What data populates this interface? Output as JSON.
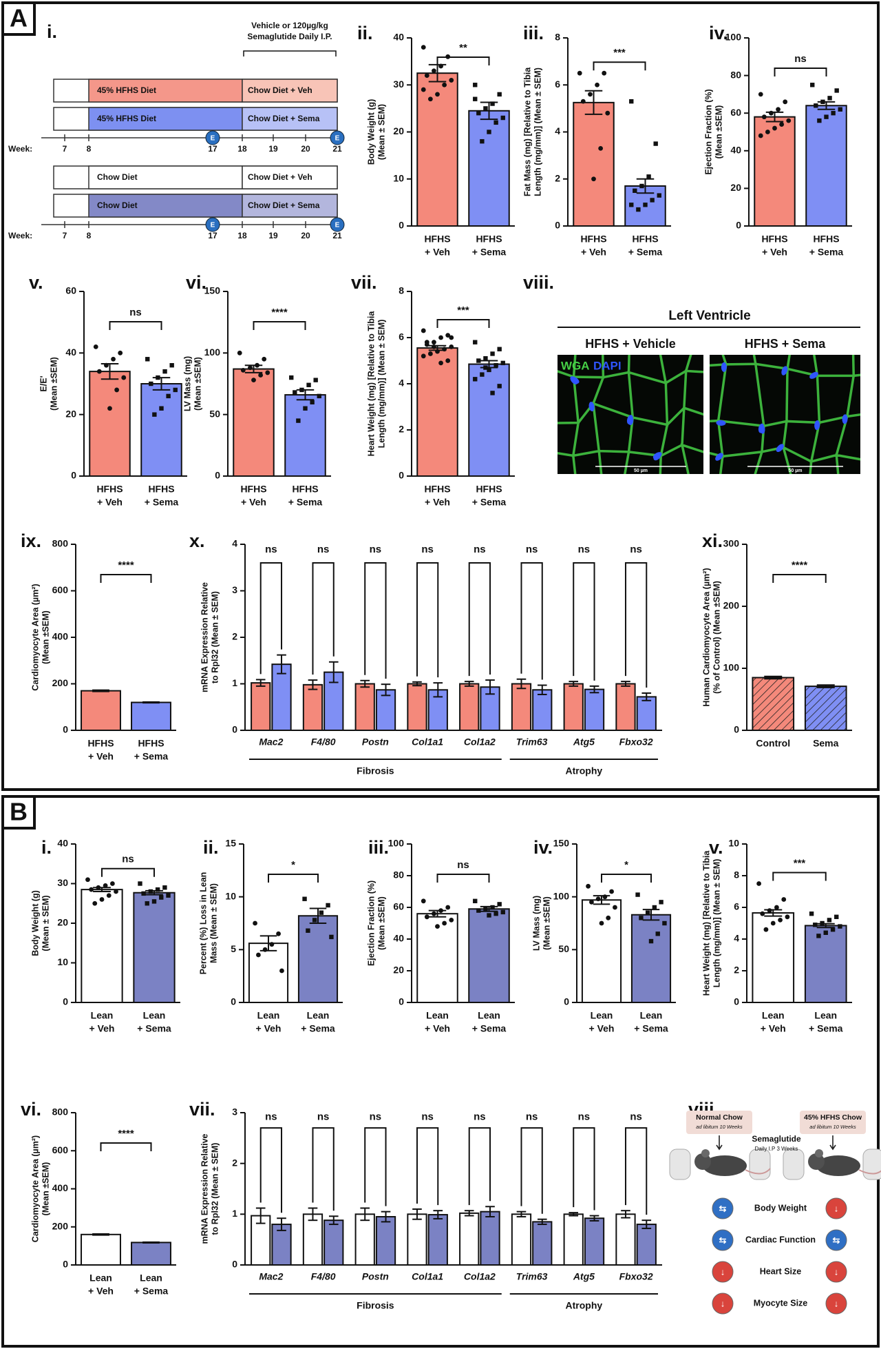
{
  "sections": [
    "A",
    "B"
  ],
  "timeline": {
    "panel": "i.",
    "note": [
      "Vehicle or 120µg/kg",
      "Semaglutide Daily I.P."
    ],
    "week_label": "Week:",
    "weeks": [
      7,
      8,
      17,
      18,
      19,
      20,
      21
    ],
    "endpoint": "E",
    "endpoint_weeks": [
      17,
      21
    ],
    "cohorts": [
      {
        "rows": [
          {
            "diet": "45% HFHS Diet",
            "treatment": "Chow Diet + Veh",
            "diet_color": "#f4978a",
            "treatment_color": "#f8c4b7"
          },
          {
            "diet": "45% HFHS Diet",
            "treatment": "Chow Diet + Sema",
            "diet_color": "#7d90f1",
            "treatment_color": "#b7c1f6"
          }
        ]
      },
      {
        "rows": [
          {
            "diet": "Chow Diet",
            "treatment": "Chow Diet + Veh",
            "diet_color": "#ffffff",
            "treatment_color": "#ffffff"
          },
          {
            "diet": "Chow Diet",
            "treatment": "Chow Diet + Sema",
            "diet_color": "#8389c7",
            "treatment_color": "#b3b6dd"
          }
        ]
      }
    ]
  },
  "micrograph": {
    "panel": "viii.",
    "title": "Left Ventricle",
    "conditions": [
      "HFHS + Vehicle",
      "HFHS + Sema"
    ],
    "stains": [
      "WGA",
      "DAPI"
    ],
    "stain_colors": [
      "#46d046",
      "#2f55ff"
    ],
    "scale_bar": "50 µm"
  },
  "schematic": {
    "panel": "viii.",
    "groups": [
      {
        "label": "Normal Chow",
        "note": "ad libitum 10 Weeks"
      },
      {
        "label": "45% HFHS Chow",
        "note": "ad libitum 10 Weeks"
      }
    ],
    "treatment": "Semaglutide",
    "treatment_note": "Daily I.P 3 Weeks",
    "symbol_colors": {
      "⇆": "#2f6fc4",
      "↓": "#d9443c"
    },
    "outcomes": [
      {
        "label": "Body Weight",
        "left": "⇆",
        "right": "↓"
      },
      {
        "label": "Cardiac Function",
        "left": "⇆",
        "right": "⇆"
      },
      {
        "label": "Heart Size",
        "left": "↓",
        "right": "↓"
      },
      {
        "label": "Myocyte Size",
        "left": "↓",
        "right": "↓"
      }
    ]
  },
  "chart_data": [
    {
      "type": "bar",
      "panel": "ii.",
      "ylabel": [
        "Body Weight (g)",
        "(Mean ± SEM)"
      ],
      "categories": [
        [
          "HFHS",
          "+ Veh"
        ],
        [
          "HFHS",
          "+ Sema"
        ]
      ],
      "colors": [
        "#f4897b",
        "#7f8ff4"
      ],
      "values": [
        32.5,
        24.5
      ],
      "errors": [
        1.8,
        1.8
      ],
      "points": [
        [
          38,
          36,
          34,
          33,
          32,
          31,
          30,
          28,
          27,
          29
        ],
        [
          30,
          28,
          26,
          25,
          24,
          23,
          22,
          20,
          18,
          27
        ]
      ],
      "ylim": [
        0,
        40
      ],
      "yticks": [
        0,
        10,
        20,
        30,
        40
      ],
      "significance": "**"
    },
    {
      "type": "bar",
      "panel": "iii.",
      "ylabel": [
        "Fat Mass (mg) [Relative to Tibia",
        "Length (mg/mm)] (Mean ± SEM)"
      ],
      "categories": [
        [
          "HFHS",
          "+ Veh"
        ],
        [
          "HFHS",
          "+ Sema"
        ]
      ],
      "colors": [
        "#f4897b",
        "#7f8ff4"
      ],
      "values": [
        5.25,
        1.7
      ],
      "errors": [
        0.5,
        0.3
      ],
      "points": [
        [
          6.5,
          6.5,
          6,
          5.6,
          5.3,
          4.8,
          3.3,
          2.0
        ],
        [
          5.3,
          3.5,
          2.1,
          1.7,
          1.5,
          1.3,
          1.1,
          0.9,
          0.7,
          0.9
        ]
      ],
      "ylim": [
        0,
        8
      ],
      "yticks": [
        0,
        2,
        4,
        6,
        8
      ],
      "significance": "***"
    },
    {
      "type": "bar",
      "panel": "iv.",
      "ylabel": [
        "Ejection Fraction (%)",
        "(Mean ±SEM)"
      ],
      "categories": [
        [
          "HFHS",
          "+ Veh"
        ],
        [
          "HFHS",
          "+ Sema"
        ]
      ],
      "colors": [
        "#f4897b",
        "#7f8ff4"
      ],
      "values": [
        58,
        64
      ],
      "errors": [
        2.5,
        2
      ],
      "points": [
        [
          70,
          66,
          62,
          60,
          58,
          56,
          54,
          52,
          50,
          48
        ],
        [
          75,
          72,
          68,
          66,
          64,
          62,
          60,
          58,
          56
        ]
      ],
      "ylim": [
        0,
        100
      ],
      "yticks": [
        0,
        20,
        40,
        60,
        80,
        100
      ],
      "significance": "ns"
    },
    {
      "type": "bar",
      "panel": "v.",
      "ylabel": [
        "E/E'",
        "(Mean ±SEM)"
      ],
      "categories": [
        [
          "HFHS",
          "+ Veh"
        ],
        [
          "HFHS",
          "+ Sema"
        ]
      ],
      "colors": [
        "#f4897b",
        "#7f8ff4"
      ],
      "values": [
        34,
        30
      ],
      "errors": [
        2.5,
        2
      ],
      "points": [
        [
          42,
          40,
          38,
          36,
          34,
          32,
          28,
          22
        ],
        [
          38,
          36,
          34,
          32,
          30,
          28,
          26,
          22,
          20
        ]
      ],
      "ylim": [
        0,
        60
      ],
      "yticks": [
        0,
        20,
        40,
        60
      ],
      "significance": "ns"
    },
    {
      "type": "bar",
      "panel": "vi.",
      "ylabel": [
        "LV Mass (mg)",
        "(Mean ±SEM)"
      ],
      "categories": [
        [
          "HFHS",
          "+ Veh"
        ],
        [
          "HFHS",
          "+ Sema"
        ]
      ],
      "colors": [
        "#f4897b",
        "#7f8ff4"
      ],
      "values": [
        87,
        66
      ],
      "errors": [
        3,
        4
      ],
      "points": [
        [
          100,
          95,
          90,
          88,
          86,
          84,
          82,
          78
        ],
        [
          80,
          78,
          74,
          70,
          68,
          65,
          60,
          55,
          45
        ]
      ],
      "ylim": [
        0,
        150
      ],
      "yticks": [
        0,
        50,
        100,
        150
      ],
      "significance": "****"
    },
    {
      "type": "bar",
      "panel": "vii.",
      "ylabel": [
        "Heart Weight (mg) [Relative to Tibia",
        "Length (mg/mm)] (Mean ± SEM)"
      ],
      "categories": [
        [
          "HFHS",
          "+ Veh"
        ],
        [
          "HFHS",
          "+ Sema"
        ]
      ],
      "colors": [
        "#f4897b",
        "#7f8ff4"
      ],
      "values": [
        5.55,
        4.85
      ],
      "errors": [
        0.1,
        0.15
      ],
      "points": [
        [
          6.3,
          6.1,
          6.0,
          5.8,
          5.7,
          5.6,
          5.5,
          5.4,
          5.3,
          5.2,
          5.0,
          4.9,
          5.6,
          5.8,
          6.0
        ],
        [
          5.8,
          5.5,
          5.3,
          5.1,
          5.0,
          4.9,
          4.8,
          4.6,
          4.4,
          4.2,
          3.9,
          3.6,
          4.7
        ]
      ],
      "ylim": [
        0,
        8
      ],
      "yticks": [
        0,
        2,
        4,
        6,
        8
      ],
      "significance": "***"
    },
    {
      "type": "bar",
      "panel": "ix.",
      "ylabel": [
        "Cardiomyocyte Area (µm²)",
        "(Mean ±SEM)"
      ],
      "categories": [
        [
          "HFHS",
          "+ Veh"
        ],
        [
          "HFHS",
          "+ Sema"
        ]
      ],
      "colors": [
        "#f4897b",
        "#7f8ff4"
      ],
      "values": [
        170,
        120
      ],
      "errors": [
        3,
        2
      ],
      "ylim": [
        0,
        800
      ],
      "yticks": [
        0,
        200,
        400,
        600,
        800
      ],
      "significance": "****"
    },
    {
      "type": "grouped_bar",
      "panel": "x.",
      "ylabel": [
        "mRNA Expression Relative",
        "to Rpl32 (Mean ± SEM)"
      ],
      "groups": [
        {
          "label": "Fibrosis",
          "categories": [
            "Mac2",
            "F4/80",
            "Postn",
            "Col1a1",
            "Col1a2"
          ]
        },
        {
          "label": "Atrophy",
          "categories": [
            "Trim63",
            "Atg5",
            "Fbxo32"
          ]
        }
      ],
      "series": [
        {
          "color": "#f4897b",
          "values": [
            1.02,
            0.98,
            1.0,
            1.0,
            1.0,
            1.0,
            1.0,
            1.0
          ],
          "errors": [
            0.07,
            0.1,
            0.07,
            0.04,
            0.05,
            0.1,
            0.05,
            0.05
          ]
        },
        {
          "color": "#7f8ff4",
          "values": [
            1.42,
            1.25,
            0.87,
            0.87,
            0.93,
            0.87,
            0.88,
            0.72
          ],
          "errors": [
            0.2,
            0.22,
            0.12,
            0.15,
            0.15,
            0.1,
            0.07,
            0.08
          ]
        }
      ],
      "ylim": [
        0,
        4
      ],
      "yticks": [
        0,
        1,
        2,
        3,
        4
      ],
      "significance": [
        "ns",
        "ns",
        "ns",
        "ns",
        "ns",
        "ns",
        "ns",
        "ns"
      ]
    },
    {
      "type": "bar",
      "panel": "xi.",
      "ylabel": [
        "Human Cardiomyocyte Area (µm²)",
        "(% of Control) (Mean ±SEM)"
      ],
      "categories": [
        [
          "Control"
        ],
        [
          "Sema"
        ]
      ],
      "colors": [
        "#f4897b",
        "#7f8ff4"
      ],
      "hatch": true,
      "values": [
        85,
        71
      ],
      "errors": [
        2,
        2
      ],
      "ylim": [
        0,
        300
      ],
      "yticks": [
        0,
        100,
        200,
        300
      ],
      "significance": "****"
    },
    {
      "type": "bar",
      "panel": "i.",
      "ylabel": [
        "Body Weight (g)",
        "(Mean ± SEM)"
      ],
      "categories": [
        [
          "Lean",
          "+ Veh"
        ],
        [
          "Lean",
          "+ Sema"
        ]
      ],
      "colors": [
        "#ffffff",
        "#7b82c4"
      ],
      "values": [
        28.5,
        27.7
      ],
      "errors": [
        0.5,
        0.5
      ],
      "points": [
        [
          31,
          30,
          29.5,
          29,
          28.5,
          28,
          27,
          26,
          25
        ],
        [
          30,
          29,
          28.5,
          28,
          27.5,
          27,
          26.5,
          25.5,
          25
        ]
      ],
      "ylim": [
        0,
        40
      ],
      "yticks": [
        0,
        10,
        20,
        30,
        40
      ],
      "significance": "ns"
    },
    {
      "type": "bar",
      "panel": "ii.",
      "ylabel": [
        "Percent (%) Loss in Lean",
        "Mass (Mean ± SEM)"
      ],
      "categories": [
        [
          "Lean",
          "+ Veh"
        ],
        [
          "Lean",
          "+ Sema"
        ]
      ],
      "colors": [
        "#ffffff",
        "#7b82c4"
      ],
      "values": [
        5.6,
        8.2
      ],
      "errors": [
        0.7,
        0.7
      ],
      "points": [
        [
          7.5,
          6.5,
          5.5,
          5,
          4.5,
          3.0
        ],
        [
          9.8,
          9.2,
          8.5,
          7.8,
          6.8,
          6.2
        ]
      ],
      "ylim": [
        0,
        15
      ],
      "yticks": [
        0,
        5,
        10,
        15
      ],
      "significance": "*"
    },
    {
      "type": "bar",
      "panel": "iii.",
      "ylabel": [
        "Ejection Fraction (%)",
        "(Mean ±SEM)"
      ],
      "categories": [
        [
          "Lean",
          "+ Veh"
        ],
        [
          "Lean",
          "+ Sema"
        ]
      ],
      "colors": [
        "#ffffff",
        "#7b82c4"
      ],
      "values": [
        56,
        59
      ],
      "errors": [
        2,
        1.5
      ],
      "points": [
        [
          64,
          60,
          58,
          56,
          54,
          52,
          50,
          48
        ],
        [
          64,
          62,
          60,
          59,
          58,
          57,
          56,
          55
        ]
      ],
      "ylim": [
        0,
        100
      ],
      "yticks": [
        0,
        20,
        40,
        60,
        80,
        100
      ],
      "significance": "ns"
    },
    {
      "type": "bar",
      "panel": "iv.",
      "ylabel": [
        "LV Mass (mg)",
        "(Mean ±SEM)"
      ],
      "categories": [
        [
          "Lean",
          "+ Veh"
        ],
        [
          "Lean",
          "+ Sema"
        ]
      ],
      "colors": [
        "#ffffff",
        "#7b82c4"
      ],
      "values": [
        97,
        83
      ],
      "errors": [
        4,
        5
      ],
      "points": [
        [
          110,
          105,
          100,
          98,
          95,
          90,
          80,
          75
        ],
        [
          102,
          95,
          90,
          85,
          80,
          75,
          65,
          58
        ]
      ],
      "ylim": [
        0,
        150
      ],
      "yticks": [
        0,
        50,
        100,
        150
      ],
      "significance": "*"
    },
    {
      "type": "bar",
      "panel": "v.",
      "ylabel": [
        "Heart Weight (mg) [Relative to Tibia",
        "Length (mg/mm)] (Mean ± SEM)"
      ],
      "categories": [
        [
          "Lean",
          "+ Veh"
        ],
        [
          "Lean",
          "+ Sema"
        ]
      ],
      "colors": [
        "#ffffff",
        "#7b82c4"
      ],
      "values": [
        5.65,
        4.85
      ],
      "errors": [
        0.2,
        0.12
      ],
      "points": [
        [
          7.5,
          6.5,
          6.0,
          5.8,
          5.6,
          5.4,
          5.2,
          5.0,
          4.6
        ],
        [
          5.6,
          5.4,
          5.2,
          5.0,
          4.9,
          4.8,
          4.6,
          4.4,
          4.2
        ]
      ],
      "ylim": [
        0,
        10
      ],
      "yticks": [
        0,
        2,
        4,
        6,
        8,
        10
      ],
      "significance": "***"
    },
    {
      "type": "bar",
      "panel": "vi.",
      "ylabel": [
        "Cardiomyocyte Area (µm²)",
        "(Mean ±SEM)"
      ],
      "categories": [
        [
          "Lean",
          "+ Veh"
        ],
        [
          "Lean",
          "+ Sema"
        ]
      ],
      "colors": [
        "#ffffff",
        "#7b82c4"
      ],
      "values": [
        160,
        118
      ],
      "errors": [
        3,
        2
      ],
      "ylim": [
        0,
        800
      ],
      "yticks": [
        0,
        200,
        400,
        600,
        800
      ],
      "significance": "****"
    },
    {
      "type": "grouped_bar",
      "panel": "vii.",
      "ylabel": [
        "mRNA Expression Relative",
        "to Rpl32 (Mean ± SEM)"
      ],
      "groups": [
        {
          "label": "Fibrosis",
          "categories": [
            "Mac2",
            "F4/80",
            "Postn",
            "Col1a1",
            "Col1a2"
          ]
        },
        {
          "label": "Atrophy",
          "categories": [
            "Trim63",
            "Atg5",
            "Fbxo32"
          ]
        }
      ],
      "series": [
        {
          "color": "#ffffff",
          "values": [
            0.97,
            1.0,
            1.0,
            1.0,
            1.02,
            1.0,
            1.0,
            1.0
          ],
          "errors": [
            0.15,
            0.12,
            0.12,
            0.1,
            0.05,
            0.05,
            0.03,
            0.07
          ]
        },
        {
          "color": "#7b82c4",
          "values": [
            0.8,
            0.88,
            0.95,
            0.99,
            1.05,
            0.85,
            0.92,
            0.8
          ],
          "errors": [
            0.12,
            0.08,
            0.1,
            0.08,
            0.1,
            0.05,
            0.05,
            0.08
          ]
        }
      ],
      "ylim": [
        0,
        3
      ],
      "yticks": [
        0,
        1,
        2,
        3
      ],
      "significance": [
        "ns",
        "ns",
        "ns",
        "ns",
        "ns",
        "ns",
        "ns",
        "ns"
      ]
    }
  ]
}
